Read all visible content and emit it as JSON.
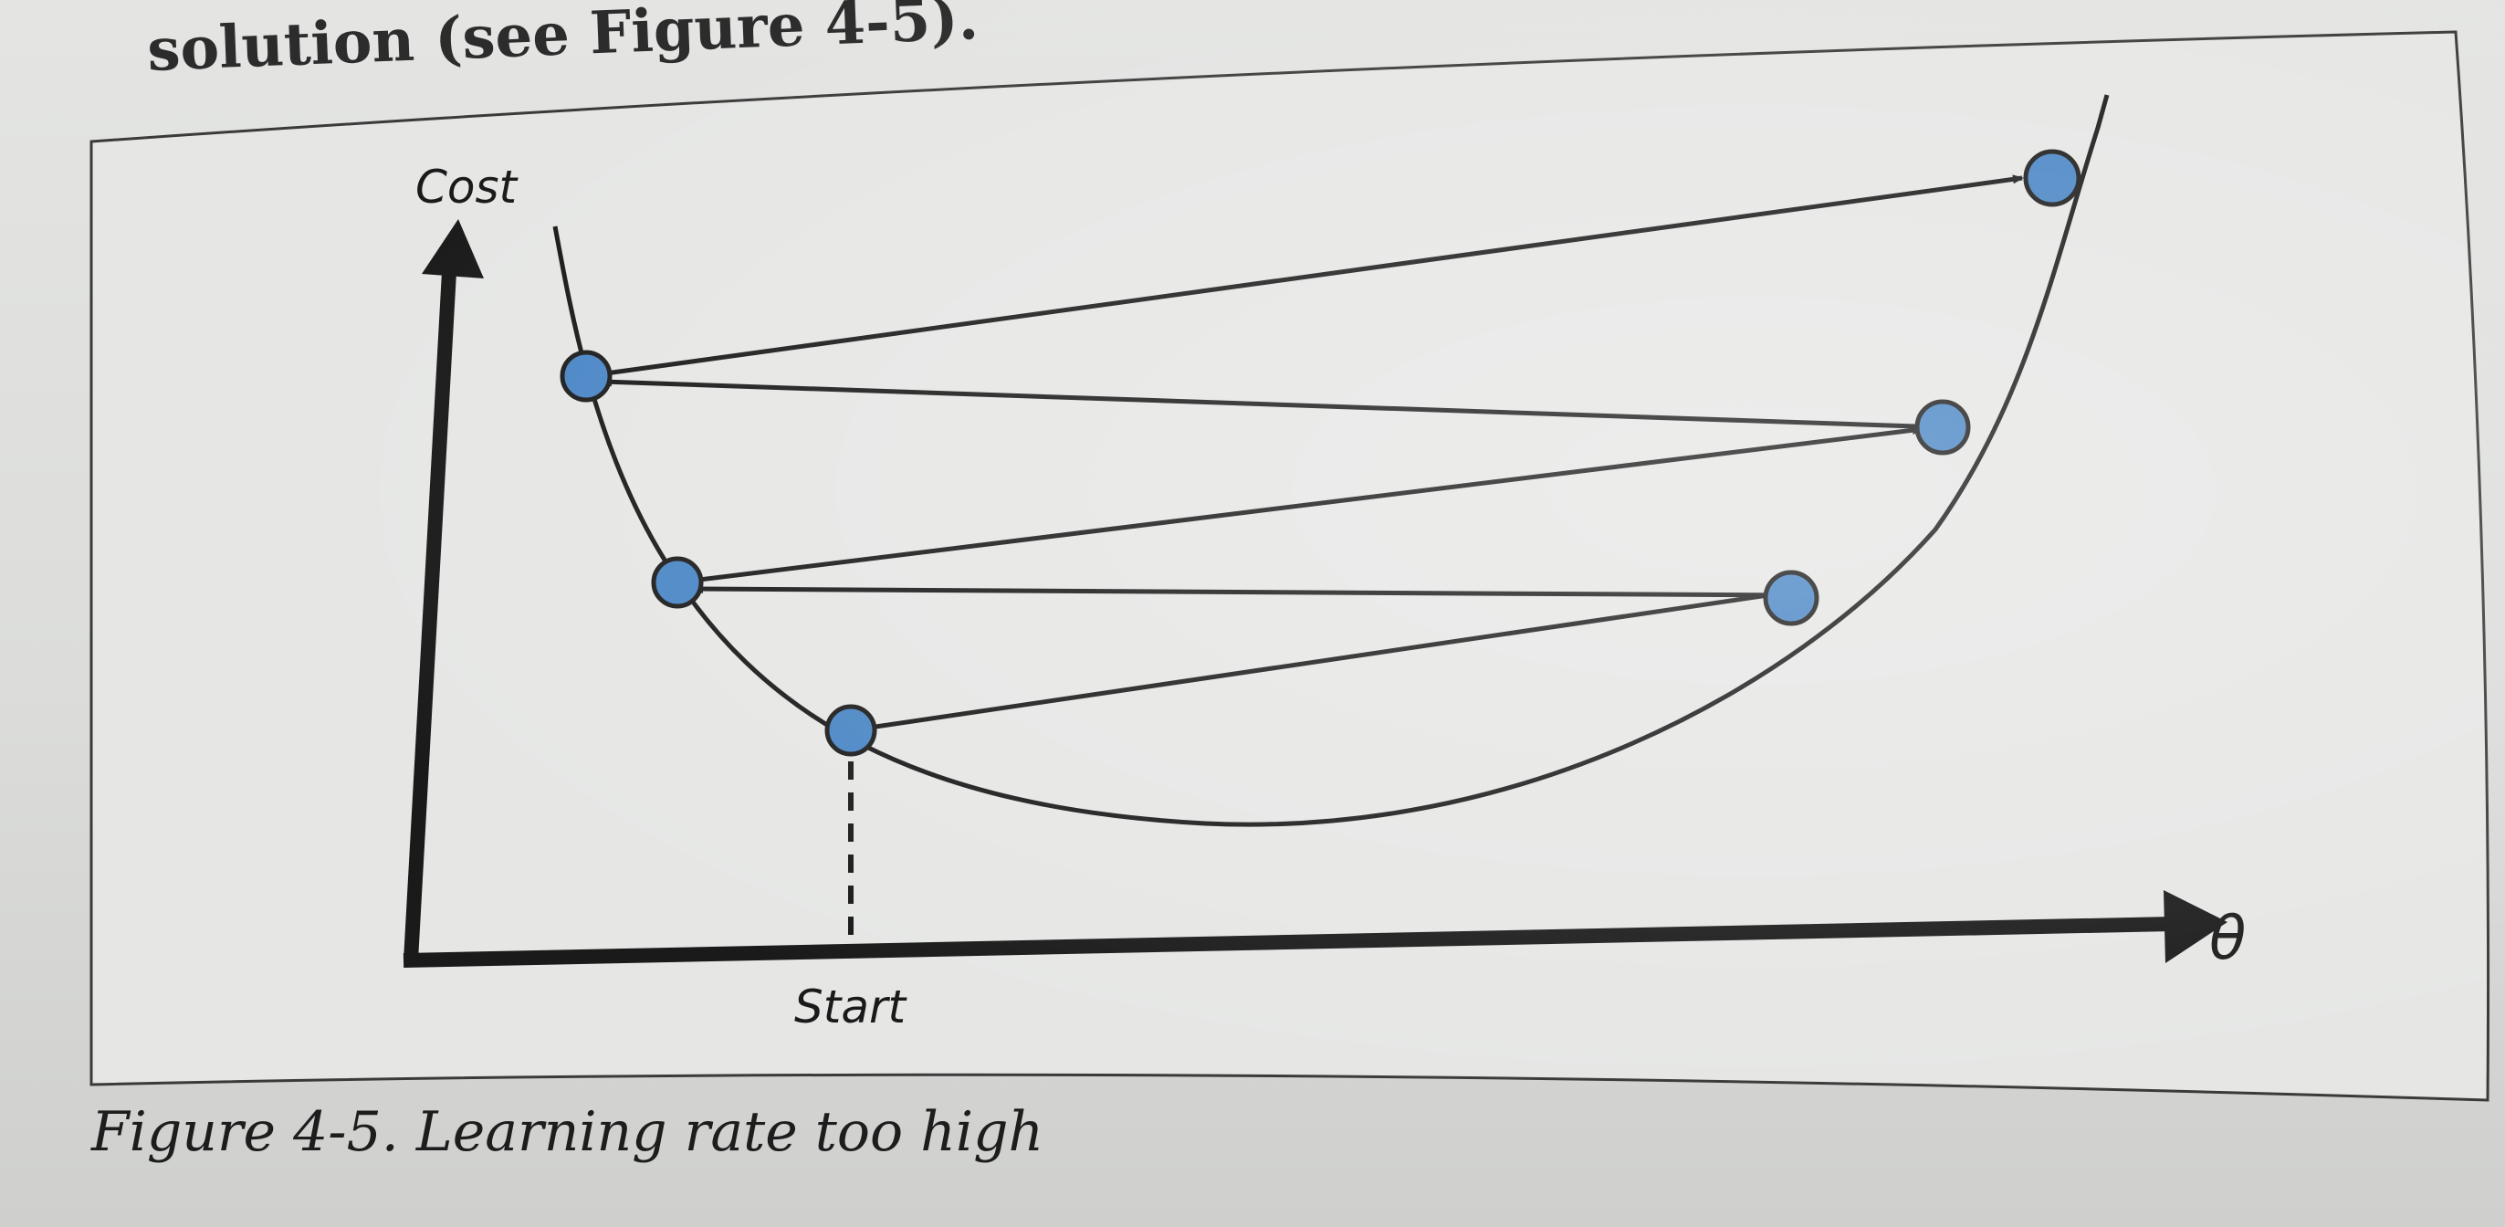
{
  "page": {
    "heading_fragment": "solution (see Figure 4-5).",
    "caption": "Figure 4-5. Learning rate too high"
  },
  "figure": {
    "y_axis_label": "Cost",
    "x_axis_label": "θ",
    "start_label": "Start",
    "colors": {
      "point_fill": "#4a86c5",
      "stroke": "#1c1c1c"
    }
  }
}
